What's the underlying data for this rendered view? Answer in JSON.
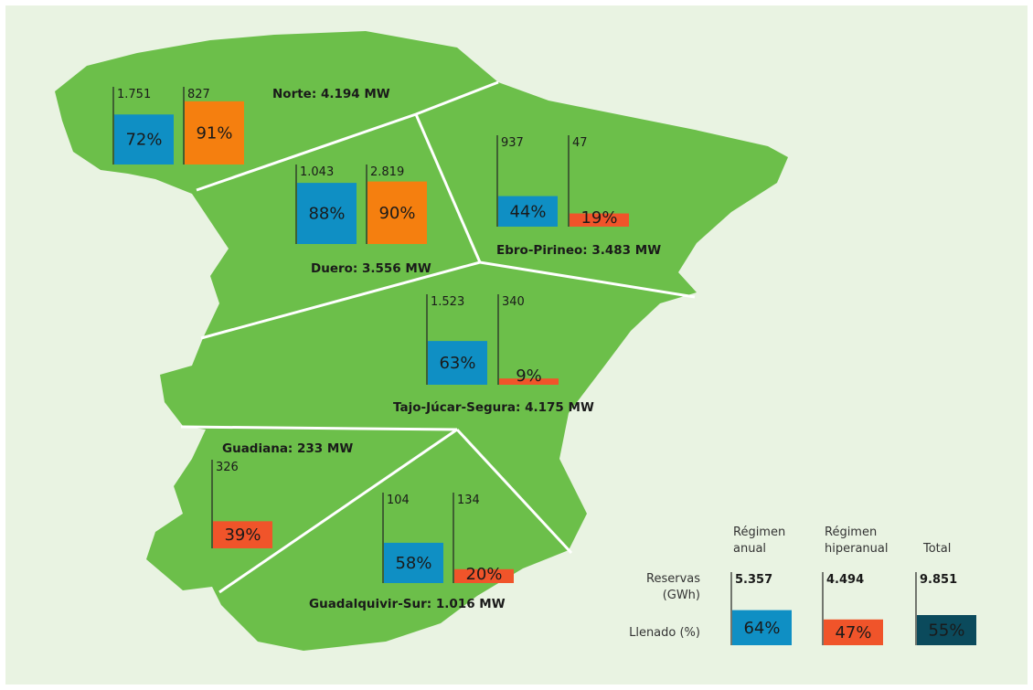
{
  "regions": [
    {
      "name": "Norte: 4.194 MW",
      "anual": {
        "reserve": "1.751",
        "fill": 72,
        "fill_label": "72%",
        "color": "#0f8fc4"
      },
      "hiper": {
        "reserve": "827",
        "fill": 91,
        "fill_label": "91%",
        "color": "#f57f0f"
      }
    },
    {
      "name": "Duero: 3.556 MW",
      "anual": {
        "reserve": "1.043",
        "fill": 88,
        "fill_label": "88%",
        "color": "#0f8fc4"
      },
      "hiper": {
        "reserve": "2.819",
        "fill": 90,
        "fill_label": "90%",
        "color": "#f57f0f"
      }
    },
    {
      "name": "Ebro-Pirineo: 3.483 MW",
      "anual": {
        "reserve": "937",
        "fill": 44,
        "fill_label": "44%",
        "color": "#0f8fc4"
      },
      "hiper": {
        "reserve": "47",
        "fill": 19,
        "fill_label": "19%",
        "color": "#f0542a"
      }
    },
    {
      "name": "Tajo-Júcar-Segura: 4.175 MW",
      "anual": {
        "reserve": "1.523",
        "fill": 63,
        "fill_label": "63%",
        "color": "#0f8fc4"
      },
      "hiper": {
        "reserve": "340",
        "fill": 9,
        "fill_label": "9%",
        "color": "#f0542a"
      }
    },
    {
      "name": "Guadiana: 233 MW",
      "hiper": {
        "reserve": "326",
        "fill": 39,
        "fill_label": "39%",
        "color": "#f0542a"
      }
    },
    {
      "name": "Guadalquivir-Sur: 1.016 MW",
      "anual": {
        "reserve": "104",
        "fill": 58,
        "fill_label": "58%",
        "color": "#0f8fc4"
      },
      "hiper": {
        "reserve": "134",
        "fill": 20,
        "fill_label": "20%",
        "color": "#f0542a"
      }
    }
  ],
  "legend": {
    "row_labels": [
      [
        "Reservas",
        "(GWh)"
      ],
      [
        "Llenado (%)"
      ]
    ],
    "columns": [
      {
        "header": [
          "Régimen",
          "anual"
        ],
        "reserve": "5.357",
        "fill": 64,
        "fill_label": "64%",
        "color": "#0f8fc4"
      },
      {
        "header": [
          "Régimen",
          "hiperanual"
        ],
        "reserve": "4.494",
        "fill": 47,
        "fill_label": "47%",
        "color": "#f0542a"
      },
      {
        "header": [
          "Total"
        ],
        "reserve": "9.851",
        "fill": 55,
        "fill_label": "55%",
        "color": "#0b4a5c"
      }
    ]
  }
}
